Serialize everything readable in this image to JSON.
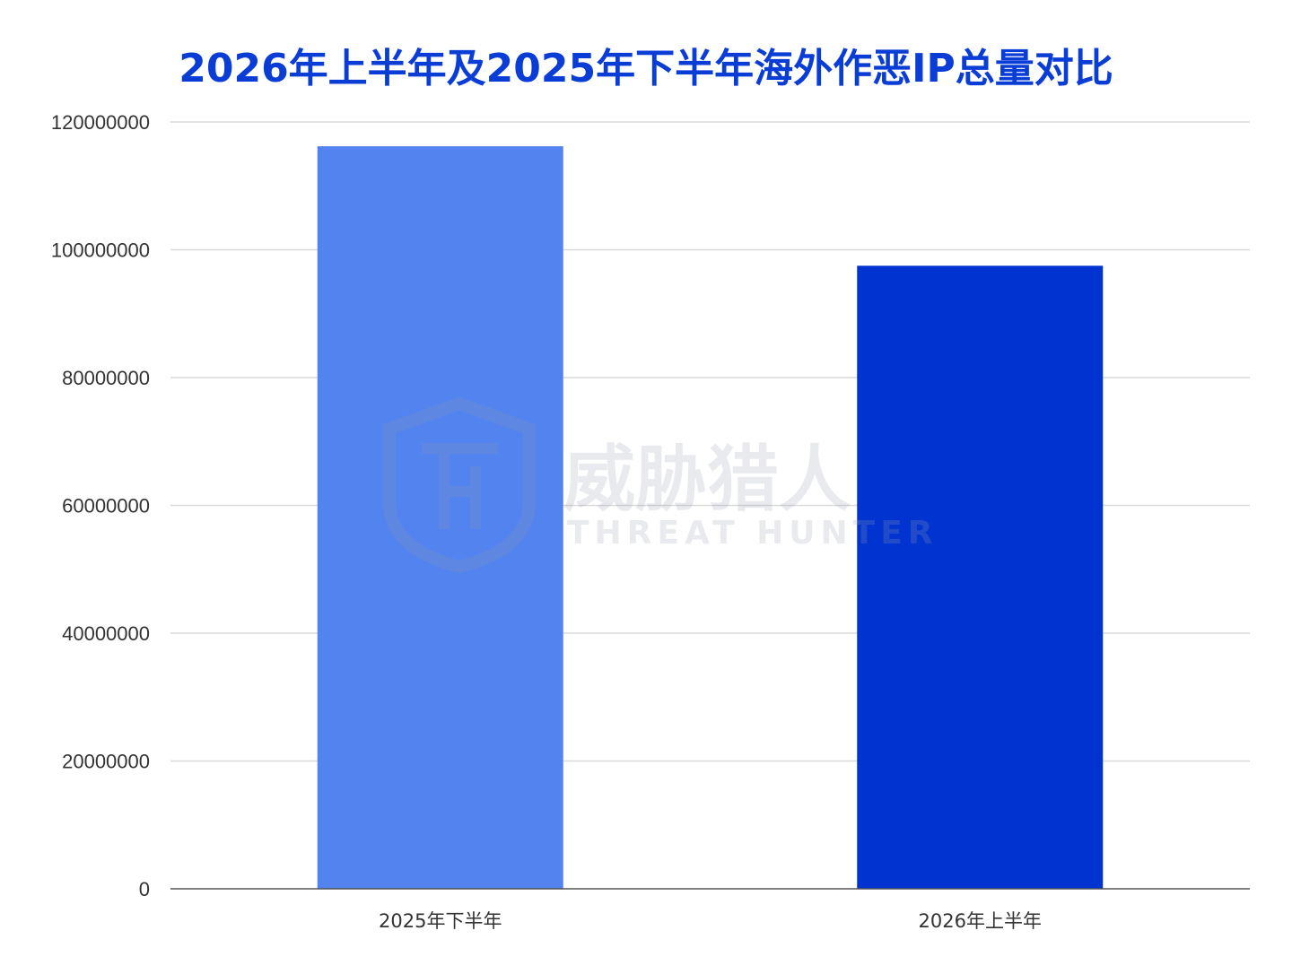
{
  "chart_data": {
    "type": "bar",
    "title": "2026年上半年及2025年下半年海外作恶IP总量对比",
    "xlabel": "",
    "ylabel": "",
    "categories": [
      "2025年下半年",
      "2026年上半年"
    ],
    "values": [
      116200000,
      97500000
    ],
    "bar_colors": [
      "#5383ef",
      "#0033cf"
    ],
    "ylim": [
      0,
      120000000
    ],
    "yticks": [
      0,
      20000000,
      40000000,
      60000000,
      80000000,
      100000000,
      120000000
    ],
    "grid": true,
    "legend": "none"
  },
  "watermark": {
    "text_cn": "威胁猎人",
    "text_en": "THREAT HUNTER",
    "color": "#9aa3b5"
  }
}
